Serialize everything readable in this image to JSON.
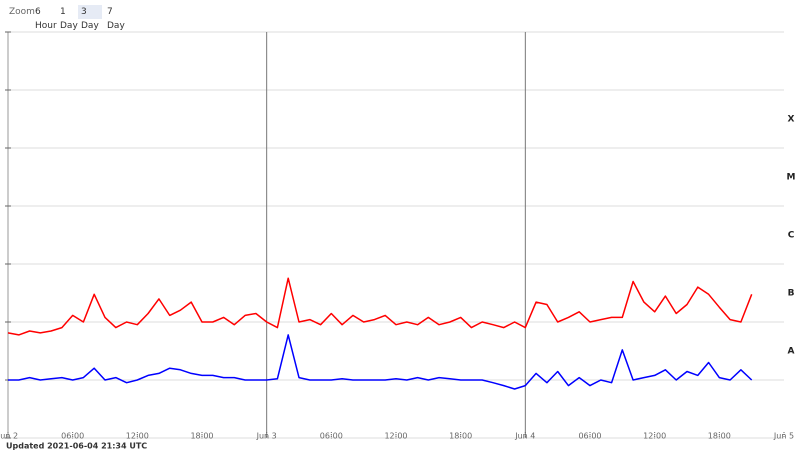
{
  "toolbar": {
    "label": "Zoom",
    "buttons": [
      "6 Hour",
      "1 Day",
      "3 Day",
      "7 Day"
    ],
    "active": 2
  },
  "footer": "Updated 2021-06-04 21:34 UTC",
  "chart_data": {
    "type": "line",
    "log_scale": true,
    "x": [
      0,
      1,
      2,
      3,
      4,
      5,
      6,
      7,
      8,
      9,
      10,
      11,
      12,
      13,
      14,
      15,
      16,
      17,
      18,
      19,
      20,
      21,
      22,
      23,
      24,
      25,
      26,
      27,
      28,
      29,
      30,
      31,
      32,
      33,
      34,
      35,
      36,
      37,
      38,
      39,
      40,
      41,
      42,
      43,
      44,
      45,
      46,
      47,
      48,
      49,
      50,
      51,
      52,
      53,
      54,
      55,
      56,
      57,
      58,
      59,
      60,
      61,
      62,
      63,
      64,
      65,
      66,
      67,
      68,
      69
    ],
    "xlim": [
      0,
      72
    ],
    "xticks": [
      {
        "value": 0,
        "label": "Jun 2"
      },
      {
        "value": 6,
        "label": "06:00"
      },
      {
        "value": 12,
        "label": "12:00"
      },
      {
        "value": 18,
        "label": "18:00"
      },
      {
        "value": 24,
        "label": "Jun 3"
      },
      {
        "value": 30,
        "label": "06:00"
      },
      {
        "value": 36,
        "label": "12:00"
      },
      {
        "value": 42,
        "label": "18:00"
      },
      {
        "value": 48,
        "label": "Jun 4"
      },
      {
        "value": 54,
        "label": "06:00"
      },
      {
        "value": 60,
        "label": "12:00"
      },
      {
        "value": 66,
        "label": "18:00"
      },
      {
        "value": 72,
        "label": "Jun 5"
      }
    ],
    "ylim": [
      1e-09,
      0.01
    ],
    "yticks": [
      1e-09,
      1e-08,
      1e-07,
      1e-06,
      1e-05,
      0.0001,
      0.001,
      0.01
    ],
    "classes": [
      {
        "label": "A",
        "value": 1e-08
      },
      {
        "label": "B",
        "value": 1e-07
      },
      {
        "label": "C",
        "value": 1e-06
      },
      {
        "label": "M",
        "value": 1e-05
      },
      {
        "label": "X",
        "value": 0.0001
      }
    ],
    "grid": true,
    "series": [
      {
        "color": "#ff0000",
        "values": [
          6.5e-08,
          6e-08,
          7e-08,
          6.5e-08,
          7e-08,
          8e-08,
          1.3e-07,
          1e-07,
          3e-07,
          1.2e-07,
          8e-08,
          1e-07,
          9e-08,
          1.4e-07,
          2.5e-07,
          1.3e-07,
          1.6e-07,
          2.2e-07,
          1e-07,
          1e-07,
          1.2e-07,
          9e-08,
          1.3e-07,
          1.4e-07,
          1e-07,
          8e-08,
          5.7e-07,
          1e-07,
          1.1e-07,
          9e-08,
          1.4e-07,
          9e-08,
          1.3e-07,
          1e-07,
          1.1e-07,
          1.3e-07,
          9e-08,
          1e-07,
          9e-08,
          1.2e-07,
          9e-08,
          1e-07,
          1.2e-07,
          8e-08,
          1e-07,
          9e-08,
          8e-08,
          1e-07,
          8e-08,
          2.2e-07,
          2e-07,
          1e-07,
          1.2e-07,
          1.5e-07,
          1e-07,
          1.1e-07,
          1.2e-07,
          1.2e-07,
          5e-07,
          2.2e-07,
          1.5e-07,
          2.8e-07,
          1.4e-07,
          2e-07,
          4e-07,
          3e-07,
          1.8e-07,
          1.1e-07,
          1e-07,
          3e-07
        ]
      },
      {
        "color": "#0000ff",
        "values": [
          1e-08,
          1e-08,
          1.1e-08,
          1e-08,
          1.05e-08,
          1.1e-08,
          1e-08,
          1.1e-08,
          1.6e-08,
          1e-08,
          1.1e-08,
          9e-09,
          1e-08,
          1.2e-08,
          1.3e-08,
          1.6e-08,
          1.5e-08,
          1.3e-08,
          1.2e-08,
          1.2e-08,
          1.1e-08,
          1.1e-08,
          1e-08,
          1e-08,
          1e-08,
          1.05e-08,
          6e-08,
          1.1e-08,
          1e-08,
          1e-08,
          1e-08,
          1.05e-08,
          1e-08,
          1e-08,
          1e-08,
          1e-08,
          1.05e-08,
          1e-08,
          1.1e-08,
          1e-08,
          1.1e-08,
          1.05e-08,
          1e-08,
          1e-08,
          1e-08,
          9e-09,
          8e-09,
          7e-09,
          8e-09,
          1.3e-08,
          9e-09,
          1.4e-08,
          8e-09,
          1.1e-08,
          8e-09,
          1e-08,
          9e-09,
          3.3e-08,
          1e-08,
          1.1e-08,
          1.2e-08,
          1.5e-08,
          1e-08,
          1.4e-08,
          1.2e-08,
          2e-08,
          1.1e-08,
          1e-08,
          1.5e-08,
          1e-08
        ]
      }
    ]
  }
}
